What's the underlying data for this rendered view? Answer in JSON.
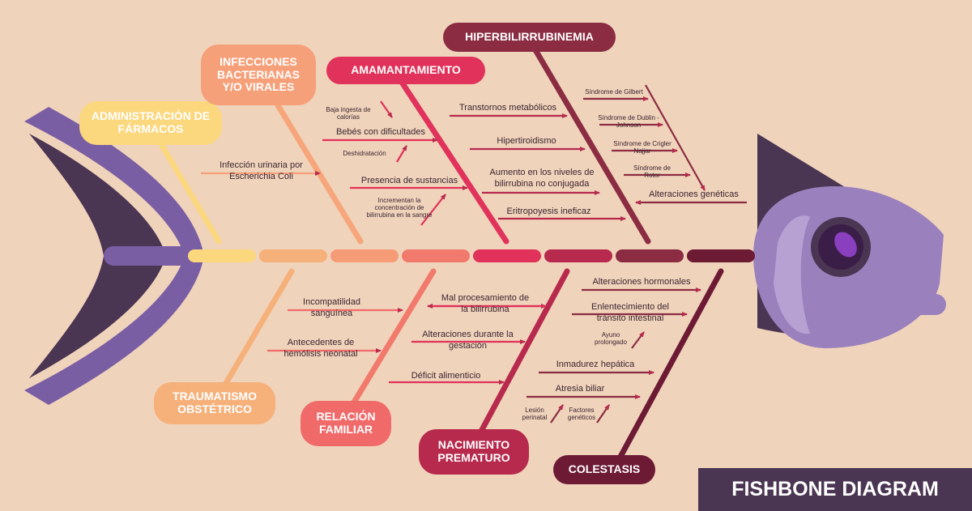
{
  "title": "FISHBONE DIAGRAM",
  "colors": {
    "background": "#f0d3bb",
    "yellow": "#fbd77e",
    "light_orange": "#f6b07a",
    "salmon": "#f38b72",
    "coral": "#f06a6a",
    "pink_red": "#e0325a",
    "crimson": "#b72a4d",
    "wine": "#8b2c42",
    "maroon": "#6d1a35",
    "fish_purple": "#7a5ea3",
    "fish_dark": "#4a3552"
  },
  "categories": {
    "admin": "ADMINISTRACIÓN DE FÁRMACOS",
    "infecciones": "INFECCIONES BACTERIANAS Y/O VIRALES",
    "amamantamiento": "AMAMANTAMIENTO",
    "hiper": "HIPERBILIRRUBINEMIA",
    "trauma": "TRAUMATISMO OBSTÉTRICO",
    "relacion": "RELACIÓN FAMILIAR",
    "nacimiento": "NACIMIENTO PREMATURO",
    "colestasis": "COLESTASIS"
  },
  "causes": {
    "infeccion_urinaria": "Infección urinaria por Escherichia Coli",
    "baja_ingesta": "Baja ingesta de calorías",
    "bebes": "Bebés con dificultades",
    "deshidratacion": "Deshidratación",
    "presencia": "Presencia de sustancias",
    "incrementan": "Incrementan la concentración de bilirrubina en la sangre",
    "transtornos": "Transtornos metabólicos",
    "hipertiroidismo": "Hipertiroidismo",
    "aumento": "Aumento en los niveles de bilirrubina no conjugada",
    "eritropoyesis": "Eritropoyesis ineficaz",
    "gilbert": "Síndrome de Gilbert",
    "dublin": "Síndrome de Dublin - Johnson",
    "crigler": "Síndrome de Crigler Najjar",
    "rotor": "Síndrome de Rotor",
    "alteraciones_geneticas": "Alteraciones genéticas",
    "incompatibilidad": "Incompatilidad sanguínea",
    "antecedentes": "Antecedentes de hemólisis neonatal",
    "mal_procesamiento": "Mal procesamiento de la bilirrubina",
    "alteraciones_gestacion": "Alteraciones durante la gestación",
    "deficit": "Déficit alimenticio",
    "alteraciones_hormonales": "Alteraciones hormonales",
    "enlentecimiento": "Enlentecimiento del tránsito intestinal",
    "ayuno": "Ayuno prolongado",
    "inmadurez": "Inmadurez hepática",
    "atresia": "Atresia biliar",
    "lesion": "Lesión perinatal",
    "factores": "Factores genéticos"
  }
}
